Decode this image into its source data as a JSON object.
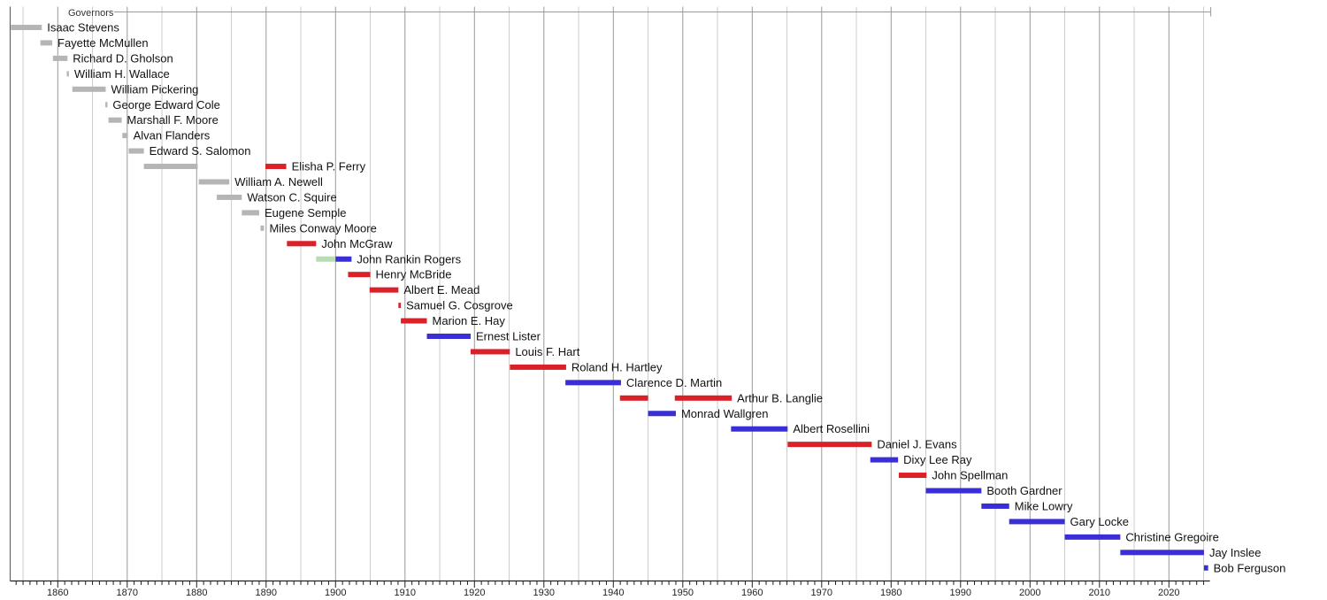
{
  "chart_data": {
    "type": "bar",
    "variant": "timeline-gantt",
    "title": "Governors",
    "xlabel": "",
    "ylabel": "",
    "legend": null,
    "x_axis": {
      "min": 1853.1,
      "max": 2025.9,
      "major_ticks": [
        1860,
        1870,
        1880,
        1890,
        1900,
        1910,
        1920,
        1930,
        1940,
        1950,
        1960,
        1970,
        1980,
        1990,
        2000,
        2010,
        2020
      ],
      "minor_tick_step_years": 1,
      "grid_step_years": 5,
      "grid_on": true
    },
    "party_colors": {
      "territorial": "#b5b5b5",
      "republican": "#da2128",
      "democrat": "#3a2ed6",
      "populist": "#b6ddb4"
    },
    "style_colors": {
      "grid_minor": "#cccccc",
      "grid_major": "#999999",
      "frame": "#666666",
      "axis": "#222222",
      "title_line": "#999999",
      "label_text": "#111111",
      "tick_text": "#222222",
      "title_text": "#333333"
    },
    "rows": [
      {
        "label": "Isaac Stevens",
        "segments": [
          {
            "start": 1853.25,
            "end": 1857.7,
            "party": "territorial"
          }
        ]
      },
      {
        "label": "Fayette McMullen",
        "segments": [
          {
            "start": 1857.5,
            "end": 1859.2,
            "party": "territorial"
          }
        ]
      },
      {
        "label": "Richard D. Gholson",
        "segments": [
          {
            "start": 1859.3,
            "end": 1861.4,
            "party": "territorial"
          }
        ]
      },
      {
        "label": "William H. Wallace",
        "segments": [
          {
            "start": 1861.3,
            "end": 1861.6,
            "party": "territorial"
          }
        ]
      },
      {
        "label": "William Pickering",
        "segments": [
          {
            "start": 1862.1,
            "end": 1866.9,
            "party": "territorial"
          }
        ]
      },
      {
        "label": "George Edward Cole",
        "segments": [
          {
            "start": 1866.85,
            "end": 1867.15,
            "party": "territorial"
          }
        ]
      },
      {
        "label": "Marshall F. Moore",
        "segments": [
          {
            "start": 1867.3,
            "end": 1869.2,
            "party": "territorial"
          }
        ]
      },
      {
        "label": "Alvan Flanders",
        "segments": [
          {
            "start": 1869.3,
            "end": 1870.1,
            "party": "territorial"
          }
        ]
      },
      {
        "label": "Edward S. Salomon",
        "segments": [
          {
            "start": 1870.2,
            "end": 1872.4,
            "party": "territorial"
          }
        ]
      },
      {
        "label": "Elisha P. Ferry",
        "segments": [
          {
            "start": 1872.4,
            "end": 1880.15,
            "party": "territorial"
          },
          {
            "start": 1889.9,
            "end": 1892.9,
            "party": "republican"
          }
        ]
      },
      {
        "label": "William A. Newell",
        "segments": [
          {
            "start": 1880.3,
            "end": 1884.7,
            "party": "territorial"
          }
        ]
      },
      {
        "label": "Watson C. Squire",
        "segments": [
          {
            "start": 1882.9,
            "end": 1886.5,
            "party": "territorial"
          }
        ]
      },
      {
        "label": "Eugene Semple",
        "segments": [
          {
            "start": 1886.5,
            "end": 1889.0,
            "party": "territorial"
          }
        ]
      },
      {
        "label": "Miles Conway Moore",
        "segments": [
          {
            "start": 1889.2,
            "end": 1889.7,
            "party": "territorial"
          }
        ]
      },
      {
        "label": "John McGraw",
        "segments": [
          {
            "start": 1893.0,
            "end": 1897.2,
            "party": "republican"
          }
        ]
      },
      {
        "label": "John Rankin Rogers",
        "segments": [
          {
            "start": 1897.2,
            "end": 1900.0,
            "party": "populist"
          },
          {
            "start": 1900.0,
            "end": 1902.3,
            "party": "democrat"
          }
        ]
      },
      {
        "label": "Henry McBride",
        "segments": [
          {
            "start": 1901.8,
            "end": 1905.0,
            "party": "republican"
          }
        ]
      },
      {
        "label": "Albert E. Mead",
        "segments": [
          {
            "start": 1904.9,
            "end": 1909.05,
            "party": "republican"
          }
        ]
      },
      {
        "label": "Samuel G. Cosgrove",
        "segments": [
          {
            "start": 1909.05,
            "end": 1909.4,
            "party": "republican"
          }
        ]
      },
      {
        "label": "Marion E. Hay",
        "segments": [
          {
            "start": 1909.4,
            "end": 1913.15,
            "party": "republican"
          }
        ]
      },
      {
        "label": "Ernest Lister",
        "segments": [
          {
            "start": 1913.15,
            "end": 1919.45,
            "party": "democrat"
          }
        ]
      },
      {
        "label": "Louis F. Hart",
        "segments": [
          {
            "start": 1919.45,
            "end": 1925.1,
            "party": "republican"
          }
        ]
      },
      {
        "label": "Roland H. Hartley",
        "segments": [
          {
            "start": 1925.1,
            "end": 1933.2,
            "party": "republican"
          }
        ]
      },
      {
        "label": "Clarence D. Martin",
        "segments": [
          {
            "start": 1933.1,
            "end": 1941.1,
            "party": "democrat"
          }
        ]
      },
      {
        "label": "Arthur B. Langlie",
        "segments": [
          {
            "start": 1940.95,
            "end": 1945.0,
            "party": "republican"
          },
          {
            "start": 1948.85,
            "end": 1957.05,
            "party": "republican"
          }
        ]
      },
      {
        "label": "Monrad Wallgren",
        "segments": [
          {
            "start": 1945.0,
            "end": 1949.0,
            "party": "democrat"
          }
        ]
      },
      {
        "label": "Albert Rosellini",
        "segments": [
          {
            "start": 1956.95,
            "end": 1965.1,
            "party": "democrat"
          }
        ]
      },
      {
        "label": "Daniel J. Evans",
        "segments": [
          {
            "start": 1965.1,
            "end": 1977.2,
            "party": "republican"
          }
        ]
      },
      {
        "label": "Dixy Lee Ray",
        "segments": [
          {
            "start": 1977.0,
            "end": 1981.0,
            "party": "democrat"
          }
        ]
      },
      {
        "label": "John Spellman",
        "segments": [
          {
            "start": 1981.1,
            "end": 1985.1,
            "party": "republican"
          }
        ]
      },
      {
        "label": "Booth Gardner",
        "segments": [
          {
            "start": 1985.0,
            "end": 1993.0,
            "party": "democrat"
          }
        ]
      },
      {
        "label": "Mike Lowry",
        "segments": [
          {
            "start": 1993.0,
            "end": 1997.0,
            "party": "democrat"
          }
        ]
      },
      {
        "label": "Gary Locke",
        "segments": [
          {
            "start": 1997.0,
            "end": 2005.0,
            "party": "democrat"
          }
        ]
      },
      {
        "label": "Christine Gregoire",
        "segments": [
          {
            "start": 2005.0,
            "end": 2013.0,
            "party": "democrat"
          }
        ]
      },
      {
        "label": "Jay Inslee",
        "segments": [
          {
            "start": 2013.0,
            "end": 2025.05,
            "party": "democrat"
          }
        ]
      },
      {
        "label": "Bob Ferguson",
        "segments": [
          {
            "start": 2025.05,
            "end": 2025.65,
            "party": "democrat"
          }
        ]
      }
    ]
  }
}
